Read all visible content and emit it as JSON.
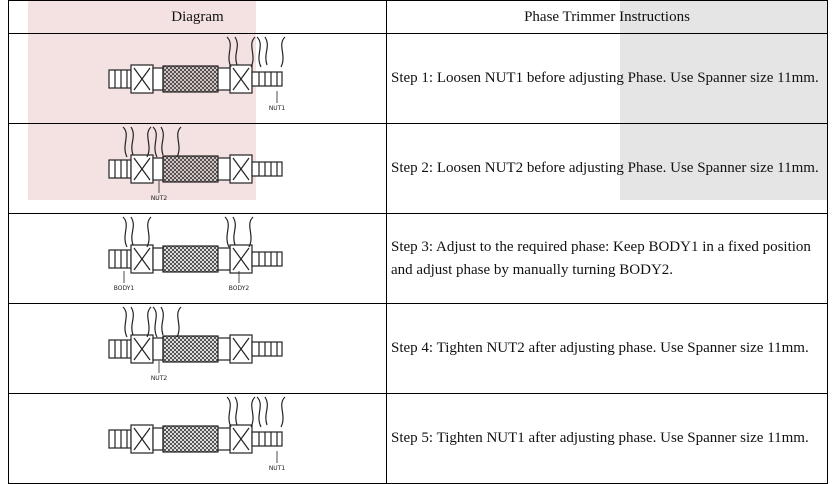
{
  "table": {
    "headers": [
      "Diagram",
      "Phase Trimmer Instructions"
    ],
    "rows": [
      {
        "labels": [
          "NUT1"
        ],
        "text": "Step 1: Loosen NUT1 before adjusting Phase. Use Spanner size 11mm."
      },
      {
        "labels": [
          "NUT2"
        ],
        "text": "Step 2: Loosen NUT2 before adjusting Phase. Use Spanner size 11mm."
      },
      {
        "labels": [
          "BODY1",
          "BODY2"
        ],
        "text": "Step 3: Adjust to the required phase: Keep BODY1 in a fixed position and adjust phase by manually turning BODY2."
      },
      {
        "labels": [
          "NUT2"
        ],
        "text": "Step 4: Tighten NUT2 after adjusting phase. Use Spanner size 11mm."
      },
      {
        "labels": [
          "NUT1"
        ],
        "text": "Step 5: Tighten NUT1 after adjusting phase. Use Spanner size 11mm."
      }
    ]
  }
}
